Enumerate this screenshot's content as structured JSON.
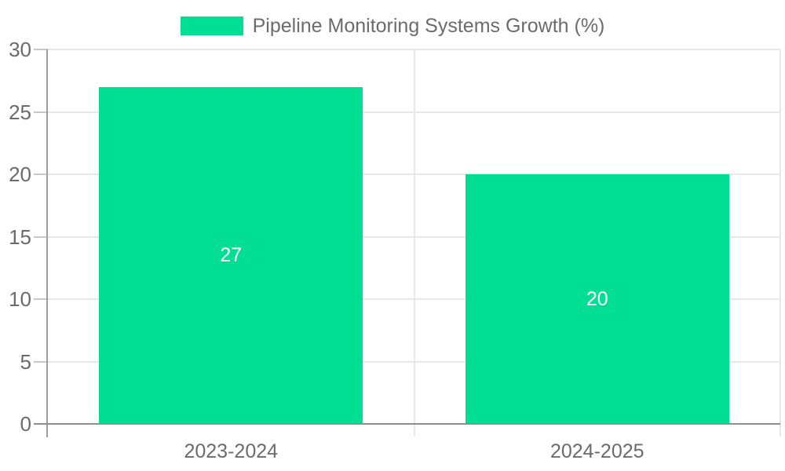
{
  "chart_data": {
    "type": "bar",
    "title": "",
    "legend": {
      "label": "Pipeline Monitoring Systems Growth (%)",
      "position": "top"
    },
    "categories": [
      "2023-2024",
      "2024-2025"
    ],
    "values": [
      27,
      20
    ],
    "data_labels": [
      "27",
      "20"
    ],
    "xlabel": "",
    "ylabel": "",
    "ylim": [
      0,
      30
    ],
    "yticks": [
      0,
      5,
      10,
      15,
      20,
      25,
      30
    ],
    "grid": true,
    "colors": {
      "bar": "#00DE94",
      "bar_label": "#ffffff",
      "tick_text": "#6b6b6b",
      "gridline": "#e8e8e8",
      "axis_y": "#9e9e9e",
      "axis_x": "#8f8f8f",
      "tick_mark": "#c8c8c8",
      "background": "#ffffff"
    }
  }
}
